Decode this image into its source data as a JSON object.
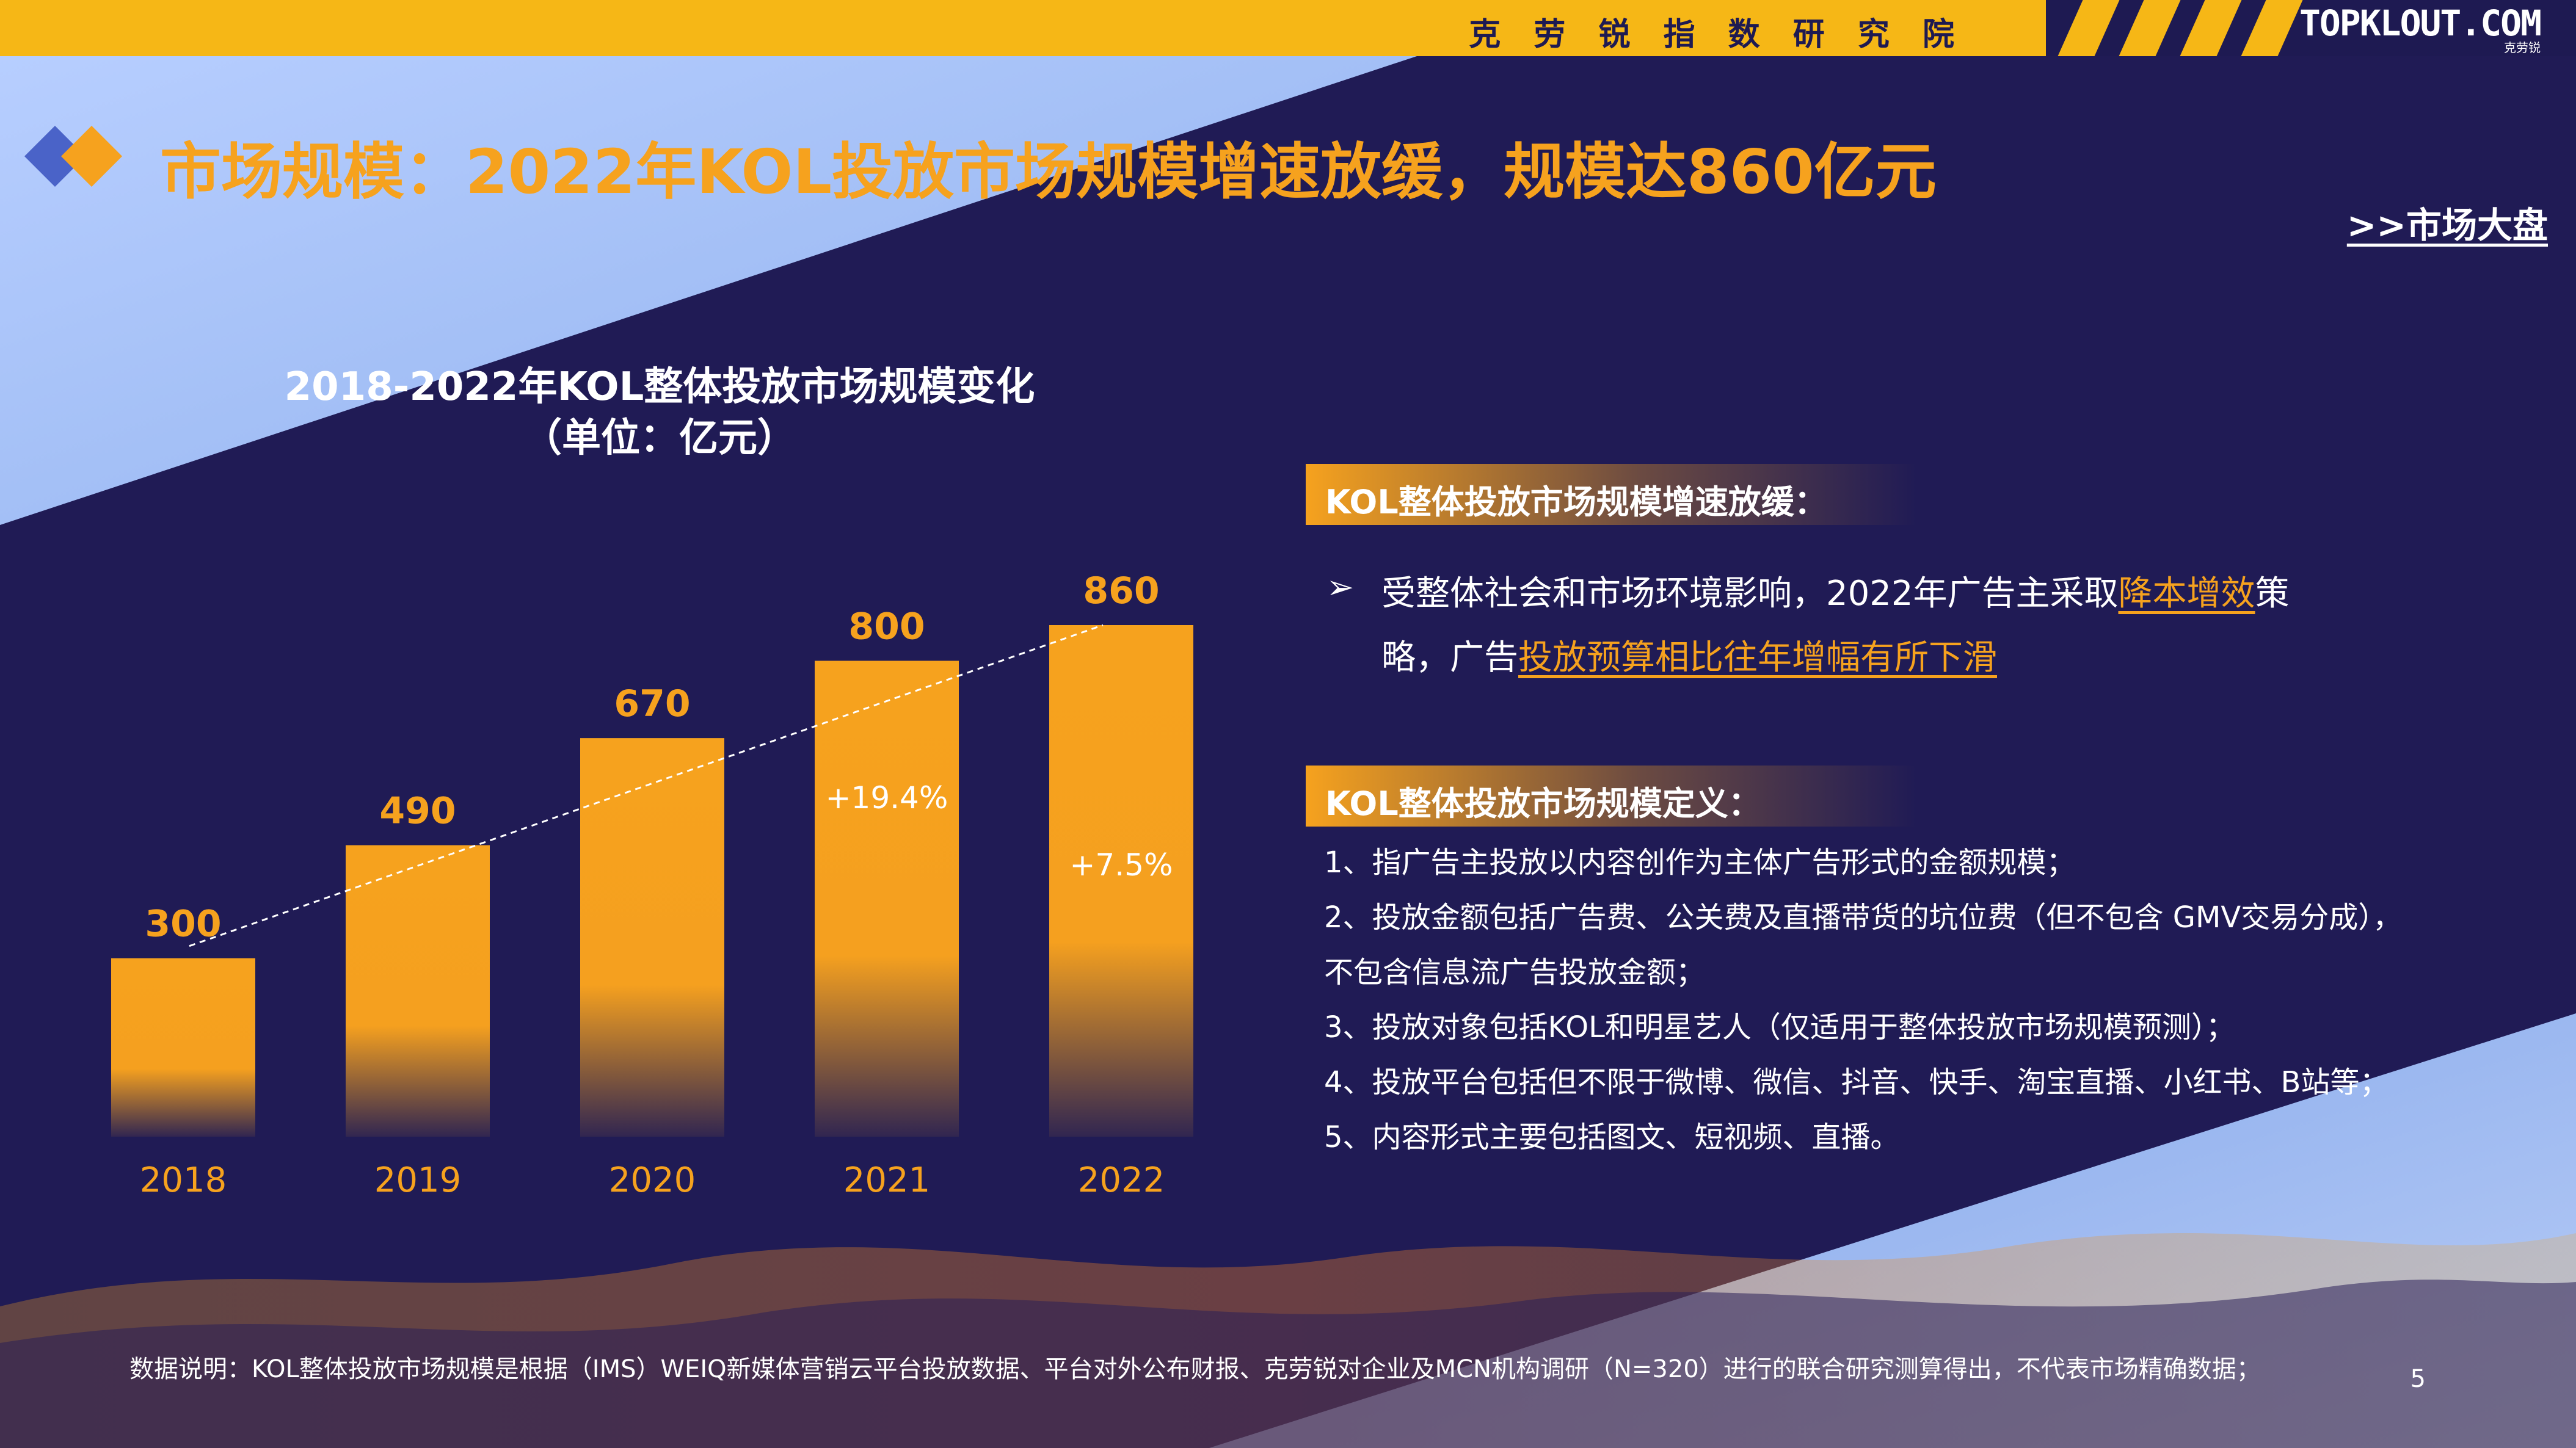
{
  "header": {
    "institute": "克 劳 锐 指 数 研 究 院",
    "brand": "TOPKLOUT.COM",
    "brand_sub": "克劳锐",
    "watermark": "TOPKLOUT.COM"
  },
  "page_title": "市场规模：2022年KOL投放市场规模增速放缓，规模达860亿元",
  "nav_link": ">>市场大盘",
  "chart_data": {
    "type": "bar",
    "title": "2018-2022年KOL整体投放市场规模变化",
    "unit": "（单位：亿元）",
    "categories": [
      "2018",
      "2019",
      "2020",
      "2021",
      "2022"
    ],
    "values": [
      300,
      490,
      670,
      800,
      860
    ],
    "value_labels": [
      "300",
      "490",
      "670",
      "800",
      "860"
    ],
    "growth_annotations": [
      {
        "category": "2021",
        "text": "+19.4%"
      },
      {
        "category": "2022",
        "text": "+7.5%"
      }
    ],
    "trend_line": "dashed",
    "ylim": [
      0,
      860
    ],
    "colors": {
      "bar": "#f6a21e",
      "label": "#f6a21e",
      "axis_text": "#f6a21e",
      "trend": "#ffffff"
    }
  },
  "section1": {
    "heading": "KOL整体投放市场规模增速放缓：",
    "bullet": "➢",
    "text_a": "受整体社会和市场环境影响，2022年广告主采取",
    "hl1": "降本增效",
    "text_b": "策略，广告",
    "hl2": "投放预算相比往年增幅有所下滑"
  },
  "section2": {
    "heading": "KOL整体投放市场规模定义：",
    "items": [
      "1、指广告主投放以内容创作为主体广告形式的金额规模；",
      "2、投放金额包括广告费、公关费及直播带货的坑位费（但不包含 GMV交易分成），",
      "不包含信息流广告投放金额；",
      "3、投放对象包括KOL和明星艺人（仅适用于整体投放市场规模预测）；",
      "4、投放平台包括但不限于微博、微信、抖音、快手、淘宝直播、小红书、B站等；",
      "5、内容形式主要包括图文、短视频、直播。"
    ]
  },
  "footnote": "数据说明：KOL整体投放市场规模是根据（IMS）WEIQ新媒体营销云平台投放数据、平台对外公布财报、克劳锐对企业及MCN机构调研（N=320）进行的联合研究测算得出，不代表市场精确数据；",
  "page_number": "5",
  "colors": {
    "accent": "#f6a21e",
    "header_yellow": "#f6b716",
    "background": "#201b55",
    "light_blue": "#a9c4f2"
  }
}
